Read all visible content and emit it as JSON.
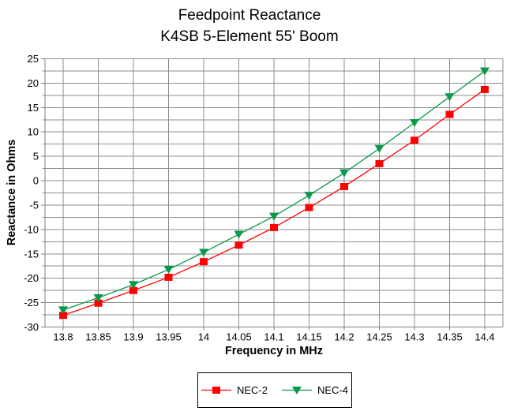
{
  "chart_data": {
    "type": "line",
    "title": "Feedpoint Reactance",
    "subtitle": "K4SB 5-Element 55' Boom",
    "xlabel": "Frequency in MHz",
    "ylabel": "Reactance in Ohms",
    "x": [
      13.8,
      13.85,
      13.9,
      13.95,
      14.0,
      14.05,
      14.1,
      14.15,
      14.2,
      14.25,
      14.3,
      14.35,
      14.4
    ],
    "x_tick_labels": [
      "13.8",
      "13.85",
      "13.9",
      "13.95",
      "14",
      "14.05",
      "14.1",
      "14.15",
      "14.2",
      "14.25",
      "14.3",
      "14.35",
      "14.4"
    ],
    "ylim": [
      -30,
      25
    ],
    "y_major": 5,
    "y_minor": 2.5,
    "grid": true,
    "legend_position": "bottom",
    "series": [
      {
        "name": "NEC-2",
        "marker": "square",
        "color": "#ff0000",
        "values": [
          -27.6,
          -25.1,
          -22.5,
          -19.8,
          -16.6,
          -13.2,
          -9.6,
          -5.5,
          -1.2,
          3.5,
          8.3,
          13.6,
          18.7
        ]
      },
      {
        "name": "NEC-4",
        "marker": "triangle-down",
        "color": "#089848",
        "values": [
          -26.5,
          -24.0,
          -21.3,
          -18.2,
          -14.7,
          -11.0,
          -7.3,
          -3.0,
          1.6,
          6.6,
          11.9,
          17.2,
          22.5
        ]
      }
    ]
  },
  "colors": {
    "grid": "#8c8c8c",
    "axis": "#808080",
    "text": "#000000",
    "background": "#ffffff"
  }
}
